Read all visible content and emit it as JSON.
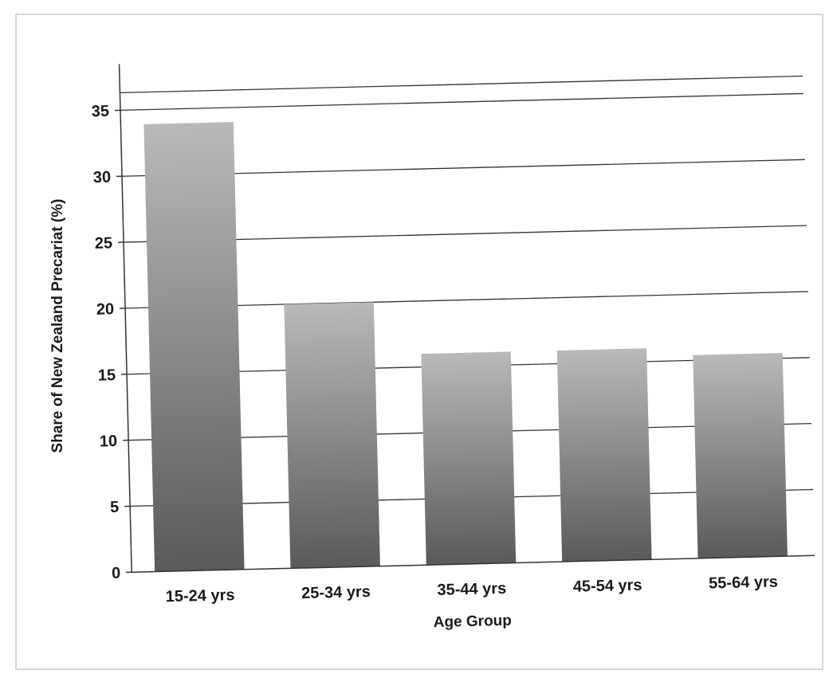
{
  "chart_data": {
    "type": "bar",
    "title": "",
    "xlabel": "Age Group",
    "ylabel": "Share of New Zealand Precariat (%)",
    "categories": [
      "15-24 yrs",
      "25-34 yrs",
      "35-44 yrs",
      "45-54 yrs",
      "55-64 yrs"
    ],
    "values": [
      33.9,
      20.0,
      16.0,
      16.0,
      15.4
    ],
    "ylim": [
      0,
      35
    ],
    "yticks": [
      "0",
      "5",
      "10",
      "15",
      "20",
      "25",
      "30",
      "35"
    ],
    "grid": true,
    "legend": "none",
    "colors": {
      "bar_top": "#b9b9b9",
      "bar_bottom": "#5a5a5a",
      "grid": "#333333",
      "axis": "#333333"
    }
  }
}
